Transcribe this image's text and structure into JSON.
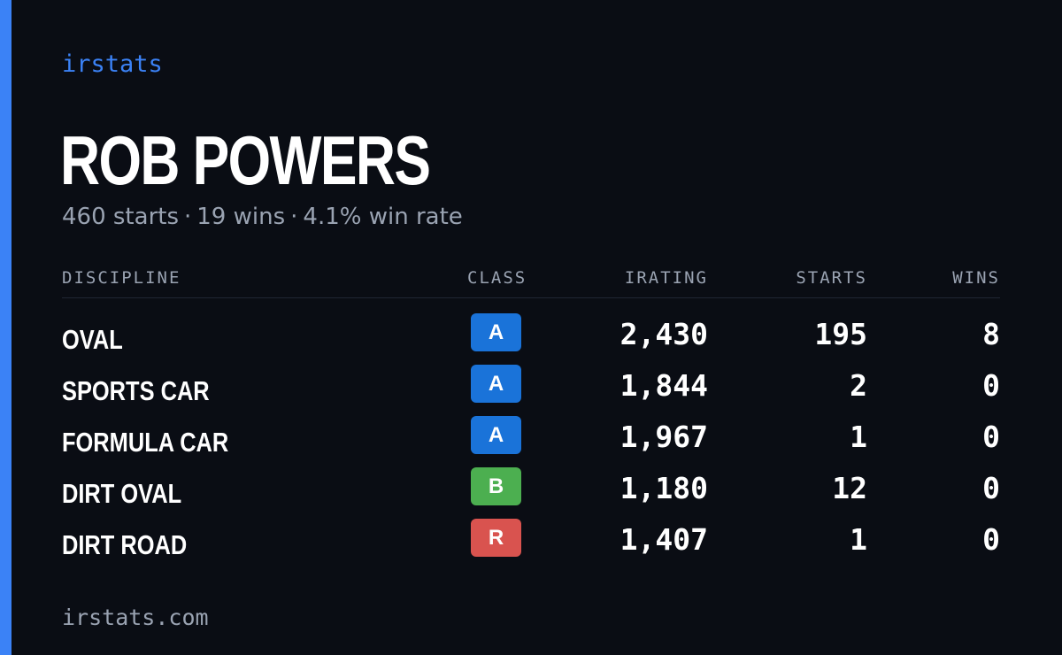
{
  "brand": "irstats",
  "driver": {
    "name": "ROB POWERS",
    "starts_text": "460 starts",
    "wins_text": "19 wins",
    "win_rate_text": "4.1% win rate",
    "separator": "·"
  },
  "table": {
    "headers": {
      "discipline": "DISCIPLINE",
      "class": "CLASS",
      "irating": "IRATING",
      "starts": "STARTS",
      "wins": "WINS"
    },
    "rows": [
      {
        "discipline": "OVAL",
        "class": "A",
        "class_color": "#1a73d9",
        "irating": "2,430",
        "starts": "195",
        "wins": "8"
      },
      {
        "discipline": "SPORTS CAR",
        "class": "A",
        "class_color": "#1a73d9",
        "irating": "1,844",
        "starts": "2",
        "wins": "0"
      },
      {
        "discipline": "FORMULA CAR",
        "class": "A",
        "class_color": "#1a73d9",
        "irating": "1,967",
        "starts": "1",
        "wins": "0"
      },
      {
        "discipline": "DIRT OVAL",
        "class": "B",
        "class_color": "#4caf50",
        "irating": "1,180",
        "starts": "12",
        "wins": "0"
      },
      {
        "discipline": "DIRT ROAD",
        "class": "R",
        "class_color": "#d9534f",
        "irating": "1,407",
        "starts": "1",
        "wins": "0"
      }
    ]
  },
  "footer": {
    "url": "irstats.com"
  },
  "colors": {
    "background": "#0a0d14",
    "accent": "#3b82f6",
    "muted_text": "#9aa3b2"
  }
}
